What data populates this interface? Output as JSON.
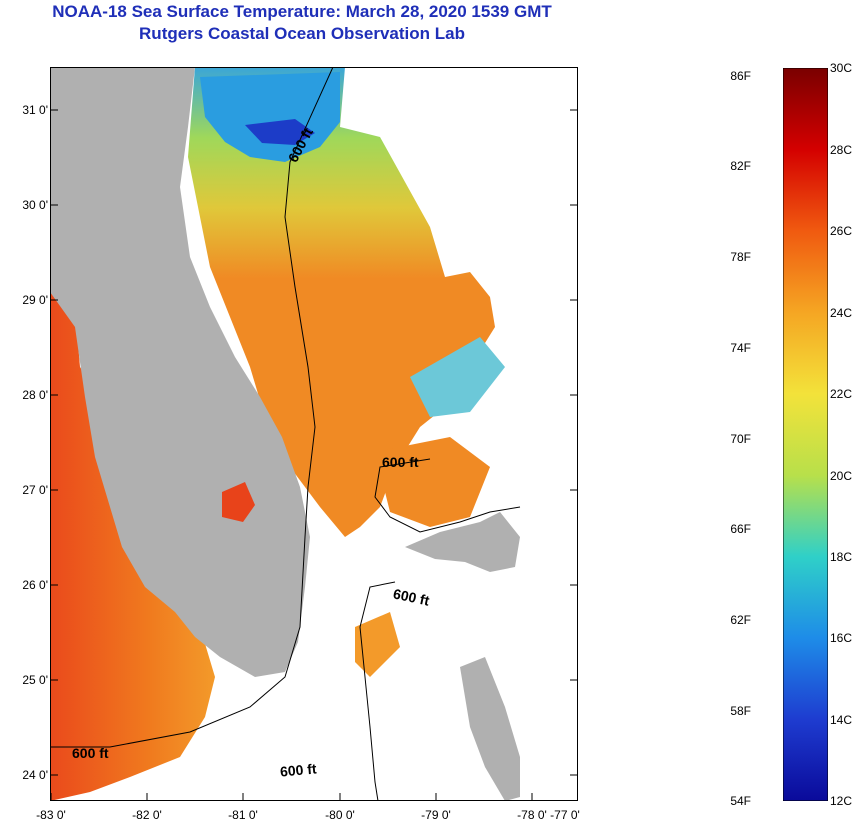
{
  "title": {
    "line1": "NOAA-18 Sea Surface Temperature:  March 28, 2020 1539 GMT",
    "line2": "Rutgers Coastal Ocean Observation Lab"
  },
  "map": {
    "lat_labels": [
      "31 0'",
      "30 0'",
      "29 0'",
      "28 0'",
      "27 0'",
      "26 0'",
      "25 0'",
      "24 0'"
    ],
    "lon_labels": [
      "-83 0'",
      "-82 0'",
      "-81 0'",
      "-80 0'",
      "-79 0'",
      "-78 0'",
      "-77 0'"
    ],
    "contour_labels": [
      "600 ft",
      "600 ft",
      "600 ft",
      "600 ft",
      "600 ft"
    ],
    "colors": {
      "land": "#b0b0b0",
      "cloud": "#ffffff",
      "warm": "#f07a1e",
      "hot": "#e8431a",
      "cool": "#b6d84a",
      "cold": "#2a9de0",
      "coldest": "#1c3cc8"
    }
  },
  "colorbar": {
    "fahrenheit_labels": [
      "86F",
      "82F",
      "78F",
      "74F",
      "70F",
      "66F",
      "62F",
      "58F",
      "54F"
    ],
    "celsius_labels": [
      "30C",
      "28C",
      "26C",
      "24C",
      "22C",
      "20C",
      "18C",
      "16C",
      "14C",
      "12C"
    ],
    "range_f": [
      54,
      86
    ],
    "range_c": [
      12,
      30
    ],
    "gradient": [
      "#7a0000",
      "#d40000",
      "#f05a10",
      "#f5a623",
      "#f3e23a",
      "#b8e04a",
      "#2fd0c8",
      "#1e8ce8",
      "#1e3cd0",
      "#0a0a9a"
    ]
  }
}
